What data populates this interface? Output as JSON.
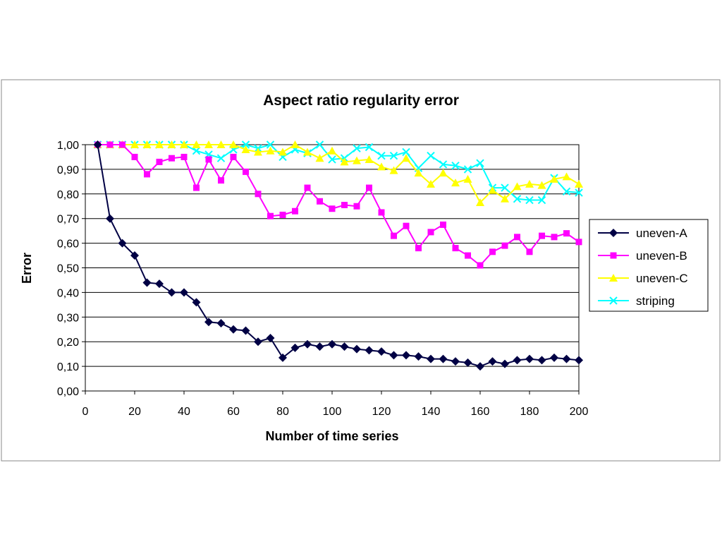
{
  "chart_data": {
    "type": "line",
    "title": "Aspect ratio regularity error",
    "xlabel": "Number of time series",
    "ylabel": "Error",
    "xlim": [
      0,
      200
    ],
    "ylim": [
      0,
      1
    ],
    "xticks": [
      0,
      20,
      40,
      60,
      80,
      100,
      120,
      140,
      160,
      180,
      200
    ],
    "yticks": [
      0,
      0.1,
      0.2,
      0.3,
      0.4,
      0.5,
      0.6,
      0.7,
      0.8,
      0.9,
      1.0
    ],
    "x_tick_labels": [
      "0",
      "20",
      "40",
      "60",
      "80",
      "100",
      "120",
      "140",
      "160",
      "180",
      "200"
    ],
    "y_tick_labels": [
      "0,00",
      "0,10",
      "0,20",
      "0,30",
      "0,40",
      "0,50",
      "0,60",
      "0,70",
      "0,80",
      "0,90",
      "1,00"
    ],
    "grid": "horizontal",
    "legend_position": "right",
    "plot_background": "#ffffff",
    "x": [
      5,
      10,
      15,
      20,
      25,
      30,
      35,
      40,
      45,
      50,
      55,
      60,
      65,
      70,
      75,
      80,
      85,
      90,
      95,
      100,
      105,
      110,
      115,
      120,
      125,
      130,
      135,
      140,
      145,
      150,
      155,
      160,
      165,
      170,
      175,
      180,
      185,
      190,
      195,
      200
    ],
    "series": [
      {
        "name": "uneven-A",
        "color": "#000044",
        "marker": "diamond",
        "values": [
          1.0,
          0.7,
          0.6,
          0.55,
          0.44,
          0.435,
          0.4,
          0.4,
          0.36,
          0.28,
          0.275,
          0.25,
          0.245,
          0.2,
          0.215,
          0.135,
          0.175,
          0.19,
          0.18,
          0.19,
          0.18,
          0.17,
          0.165,
          0.16,
          0.145,
          0.145,
          0.14,
          0.13,
          0.13,
          0.12,
          0.115,
          0.1,
          0.12,
          0.11,
          0.125,
          0.13,
          0.125,
          0.135,
          0.13,
          0.125
        ]
      },
      {
        "name": "uneven-B",
        "color": "#ff00ff",
        "marker": "square",
        "values": [
          1.0,
          1.0,
          1.0,
          0.95,
          0.88,
          0.93,
          0.945,
          0.95,
          0.825,
          0.94,
          0.855,
          0.95,
          0.89,
          0.8,
          0.71,
          0.715,
          0.73,
          0.825,
          0.77,
          0.74,
          0.755,
          0.75,
          0.825,
          0.725,
          0.63,
          0.67,
          0.58,
          0.645,
          0.675,
          0.58,
          0.55,
          0.51,
          0.565,
          0.59,
          0.625,
          0.565,
          0.63,
          0.625,
          0.64,
          0.605
        ]
      },
      {
        "name": "uneven-C",
        "color": "#ffff00",
        "marker": "triangle",
        "values": [
          1.0,
          1.0,
          1.0,
          1.0,
          1.0,
          1.0,
          1.0,
          1.0,
          1.0,
          1.0,
          1.0,
          1.0,
          0.98,
          0.97,
          0.975,
          0.97,
          1.0,
          0.97,
          0.945,
          0.975,
          0.93,
          0.935,
          0.94,
          0.91,
          0.895,
          0.945,
          0.885,
          0.84,
          0.885,
          0.845,
          0.86,
          0.765,
          0.815,
          0.78,
          0.83,
          0.84,
          0.835,
          0.86,
          0.87,
          0.84
        ]
      },
      {
        "name": "striping",
        "color": "#00ffff",
        "marker": "x",
        "values": [
          1.0,
          1.0,
          1.0,
          1.0,
          1.0,
          1.0,
          1.0,
          1.0,
          0.975,
          0.96,
          0.945,
          0.98,
          1.0,
          0.985,
          1.0,
          0.95,
          0.98,
          0.965,
          1.0,
          0.94,
          0.945,
          0.985,
          0.99,
          0.955,
          0.955,
          0.97,
          0.905,
          0.955,
          0.92,
          0.915,
          0.9,
          0.925,
          0.825,
          0.825,
          0.78,
          0.775,
          0.775,
          0.865,
          0.81,
          0.805
        ]
      }
    ]
  }
}
